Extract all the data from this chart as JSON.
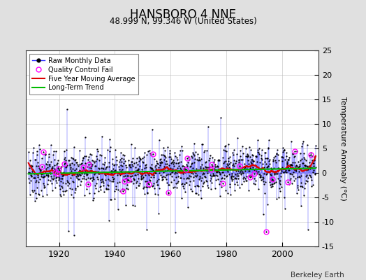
{
  "title": "HANSBORO 4 NNE",
  "subtitle": "48.999 N, 99.346 W (United States)",
  "ylabel": "Temperature Anomaly (°C)",
  "xlabel_ticks": [
    1920,
    1940,
    1960,
    1980,
    2000
  ],
  "ylim": [
    -15,
    25
  ],
  "yticks": [
    -15,
    -10,
    -5,
    0,
    5,
    10,
    15,
    20,
    25
  ],
  "xlim": [
    1908,
    2013
  ],
  "year_start": 1909,
  "n_months": 1236,
  "seed": 7,
  "bg_color": "#e0e0e0",
  "plot_bg_color": "#ffffff",
  "raw_line_color": "#3333ff",
  "raw_marker_color": "#000000",
  "moving_avg_color": "#dd0000",
  "trend_color": "#00bb00",
  "qc_fail_color": "#ff00ff",
  "watermark": "Berkeley Earth",
  "legend_labels": [
    "Raw Monthly Data",
    "Quality Control Fail",
    "Five Year Moving Average",
    "Long-Term Trend"
  ]
}
